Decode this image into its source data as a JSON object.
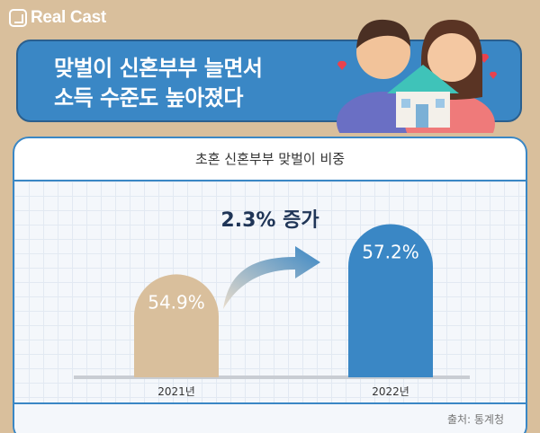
{
  "brand": {
    "logo_text": "Real Cast"
  },
  "headline": {
    "line1": "맞벌이 신혼부부 늘면서",
    "line2": "소득 수준도 높아졌다"
  },
  "colors": {
    "primary_blue": "#3a87c5",
    "tan": "#d9bf9c",
    "bar_2021": "#d9bf9c",
    "bar_2022": "#3a87c5"
  },
  "chart_data": {
    "type": "bar",
    "title": "초혼 신혼부부 맞벌이 비중",
    "categories": [
      "2021년",
      "2022년"
    ],
    "values": [
      54.9,
      57.2
    ],
    "value_labels": [
      "54.9%",
      "57.2%"
    ],
    "annotation": "2.3% 증가",
    "xlabel": "",
    "ylabel": ""
  },
  "source": "출처: 통계청"
}
